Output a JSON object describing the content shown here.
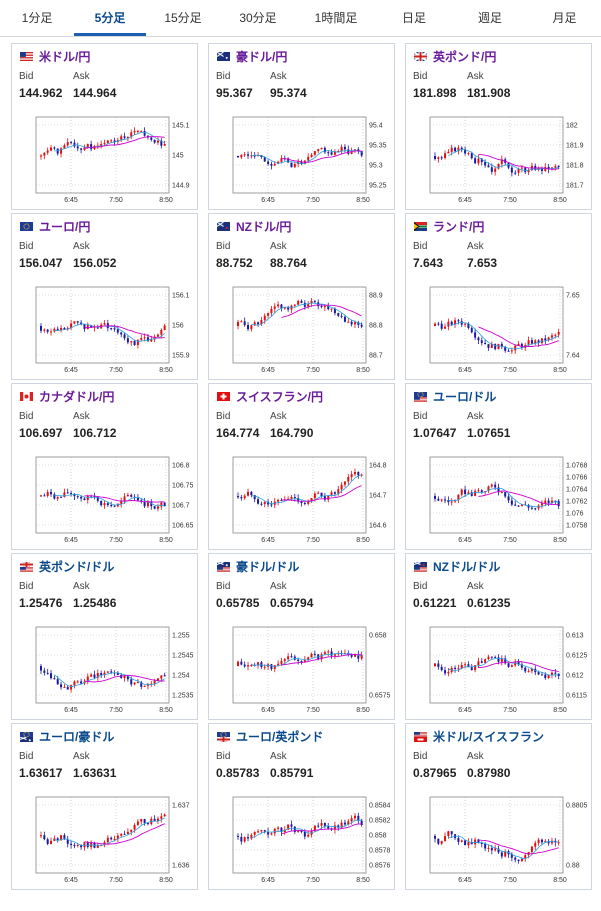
{
  "tabs": [
    {
      "label": "1分足",
      "active": false
    },
    {
      "label": "5分足",
      "active": true
    },
    {
      "label": "15分足",
      "active": false
    },
    {
      "label": "30分足",
      "active": false
    },
    {
      "label": "1時間足",
      "active": false
    },
    {
      "label": "日足",
      "active": false
    },
    {
      "label": "週足",
      "active": false
    },
    {
      "label": "月足",
      "active": false
    }
  ],
  "labels": {
    "bid": "Bid",
    "ask": "Ask"
  },
  "colors": {
    "yen_pair": "#6a1b9a",
    "cross_pair": "#0a4a8c",
    "up": "#e01010",
    "down": "#1a1aa0",
    "ma": "#d000d0",
    "ma2": "#2aa0e0"
  },
  "cards": [
    {
      "pair": "米ドル/円",
      "flag": "us",
      "bid": "144.962",
      "ask": "144.964",
      "yticks": [
        "145.1",
        "145",
        "144.9"
      ],
      "xticks": [
        "6:45",
        "7:50",
        "8:50"
      ],
      "color_key": "yen_pair",
      "seed": 1
    },
    {
      "pair": "豪ドル/円",
      "flag": "au",
      "bid": "95.367",
      "ask": "95.374",
      "yticks": [
        "95.4",
        "95.35",
        "95.3",
        "95.25"
      ],
      "xticks": [
        "6:45",
        "7:50",
        "8:50"
      ],
      "color_key": "yen_pair",
      "seed": 2
    },
    {
      "pair": "英ポンド/円",
      "flag": "gb",
      "bid": "181.898",
      "ask": "181.908",
      "yticks": [
        "182",
        "181.9",
        "181.8",
        "181.7"
      ],
      "xticks": [
        "6:45",
        "7:50",
        "8:50"
      ],
      "color_key": "yen_pair",
      "seed": 3
    },
    {
      "pair": "ユーロ/円",
      "flag": "eu",
      "bid": "156.047",
      "ask": "156.052",
      "yticks": [
        "156.1",
        "156",
        "155.9"
      ],
      "xticks": [
        "6:45",
        "7:50",
        "8:50"
      ],
      "color_key": "yen_pair",
      "seed": 4
    },
    {
      "pair": "NZドル/円",
      "flag": "nz",
      "bid": "88.752",
      "ask": "88.764",
      "yticks": [
        "88.9",
        "88.8",
        "88.7"
      ],
      "xticks": [
        "6:45",
        "7:50",
        "8:50"
      ],
      "color_key": "yen_pair",
      "seed": 5
    },
    {
      "pair": "ランド/円",
      "flag": "za",
      "bid": "7.643",
      "ask": "7.653",
      "yticks": [
        "7.65",
        "7.64"
      ],
      "xticks": [
        "6:45",
        "7:50",
        "8:50"
      ],
      "color_key": "yen_pair",
      "seed": 6
    },
    {
      "pair": "カナダドル/円",
      "flag": "ca",
      "bid": "106.697",
      "ask": "106.712",
      "yticks": [
        "106.8",
        "106.75",
        "106.7",
        "106.65"
      ],
      "xticks": [
        "6:45",
        "7:50",
        "8:50"
      ],
      "color_key": "yen_pair",
      "seed": 7
    },
    {
      "pair": "スイスフラン/円",
      "flag": "ch",
      "bid": "164.774",
      "ask": "164.790",
      "yticks": [
        "164.8",
        "164.7",
        "164.6"
      ],
      "xticks": [
        "6:45",
        "7:50",
        "8:50"
      ],
      "color_key": "yen_pair",
      "seed": 8
    },
    {
      "pair": "ユーロ/ドル",
      "flag": "eu",
      "flag2": "us",
      "bid": "1.07647",
      "ask": "1.07651",
      "yticks": [
        "1.0768",
        "1.0766",
        "1.0764",
        "1.0762",
        "1.076",
        "1.0758"
      ],
      "xticks": [
        "6:45",
        "7:50",
        "8:50"
      ],
      "color_key": "cross_pair",
      "seed": 9
    },
    {
      "pair": "英ポンド/ドル",
      "flag": "gb",
      "flag2": "us",
      "bid": "1.25476",
      "ask": "1.25486",
      "yticks": [
        "1.255",
        "1.2545",
        "1.254",
        "1.2535"
      ],
      "xticks": [
        "6:45",
        "7:50",
        "8:50"
      ],
      "color_key": "cross_pair",
      "seed": 10
    },
    {
      "pair": "豪ドル/ドル",
      "flag": "au",
      "flag2": "us",
      "bid": "0.65785",
      "ask": "0.65794",
      "yticks": [
        "0.658",
        "0.6575"
      ],
      "xticks": [
        "6:45",
        "7:50",
        "8:50"
      ],
      "color_key": "cross_pair",
      "seed": 11
    },
    {
      "pair": "NZドル/ドル",
      "flag": "nz",
      "flag2": "us",
      "bid": "0.61221",
      "ask": "0.61235",
      "yticks": [
        "0.613",
        "0.6125",
        "0.612",
        "0.6115"
      ],
      "xticks": [
        "6:45",
        "7:50",
        "8:50"
      ],
      "color_key": "cross_pair",
      "seed": 12
    },
    {
      "pair": "ユーロ/豪ドル",
      "flag": "eu",
      "flag2": "au",
      "bid": "1.63617",
      "ask": "1.63631",
      "yticks": [
        "1.637",
        "1.636"
      ],
      "xticks": [
        "6:45",
        "7:50",
        "8:50"
      ],
      "color_key": "cross_pair",
      "seed": 13
    },
    {
      "pair": "ユーロ/英ポンド",
      "flag": "eu",
      "flag2": "gb",
      "bid": "0.85783",
      "ask": "0.85791",
      "yticks": [
        "0.8584",
        "0.8582",
        "0.858",
        "0.8578",
        "0.8576"
      ],
      "xticks": [
        "6:45",
        "7:50",
        "8:50"
      ],
      "color_key": "cross_pair",
      "seed": 14
    },
    {
      "pair": "米ドル/スイスフラン",
      "flag": "us",
      "flag2": "ch",
      "bid": "0.87965",
      "ask": "0.87980",
      "yticks": [
        "0.8805",
        "0.88"
      ],
      "xticks": [
        "6:45",
        "7:50",
        "8:50"
      ],
      "color_key": "cross_pair",
      "seed": 15
    }
  ]
}
